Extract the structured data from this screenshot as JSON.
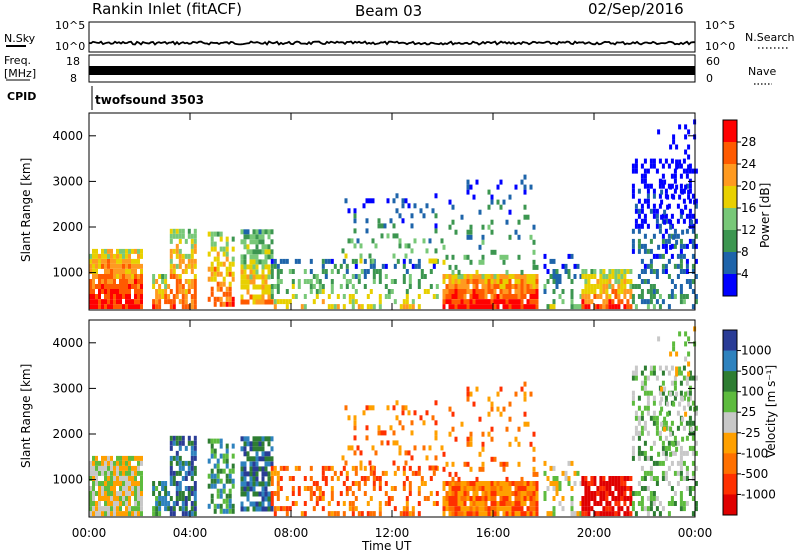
{
  "header": {
    "station": "Rankin Inlet (fitACF)",
    "beam": "Beam 03",
    "date": "02/Sep/2016"
  },
  "top_panels": {
    "nsky_label": "N.Sky",
    "nsky_ticks": [
      "10^5",
      "10^0"
    ],
    "nsearch_label": "N.Search",
    "nsearch_ticks": [
      "10^5",
      "10^0"
    ],
    "freq_label_1": "Freq.",
    "freq_label_2": "[MHz]",
    "freq_ticks": [
      "18",
      "8"
    ],
    "nave_label": "Nave",
    "nave_ticks": [
      "60",
      "0"
    ],
    "cpid_label": "CPID",
    "cpid_value": "twofsound 3503"
  },
  "chart_data": [
    {
      "type": "heatmap",
      "title": "Power",
      "ylabel": "Slant Range [km]",
      "xlabel": "",
      "x_range_hours": [
        0,
        24
      ],
      "ylim": [
        180,
        4500
      ],
      "yticks": [
        1000,
        2000,
        3000,
        4000
      ],
      "colorbar_label": "Power [dB]",
      "colorbar_ticks": [
        "28",
        "24",
        "20",
        "16",
        "12",
        "8",
        "4"
      ],
      "colorbar_colors": [
        "#ff0000",
        "#ff5a00",
        "#ff9a20",
        "#e8d000",
        "#78c878",
        "#3c9650",
        "#1e64aa",
        "#0000ff"
      ]
    },
    {
      "type": "heatmap",
      "title": "Velocity",
      "ylabel": "Slant Range [km]",
      "xlabel": "Time UT",
      "x_range_hours": [
        0,
        24
      ],
      "xticks": [
        "00:00",
        "04:00",
        "08:00",
        "12:00",
        "16:00",
        "20:00",
        "00:00"
      ],
      "ylim": [
        180,
        4500
      ],
      "yticks": [
        1000,
        2000,
        3000,
        4000
      ],
      "colorbar_label": "Velocity [m s⁻¹]",
      "colorbar_ticks": [
        "1000",
        "500",
        "100",
        "25",
        "-25",
        "-100",
        "-500",
        "-1000"
      ],
      "colorbar_colors": [
        "#2a3c96",
        "#2e82be",
        "#2e7d32",
        "#5dbb3e",
        "#c8c8c8",
        "#ffa000",
        "#ff7000",
        "#ff3000",
        "#e00000"
      ]
    }
  ]
}
